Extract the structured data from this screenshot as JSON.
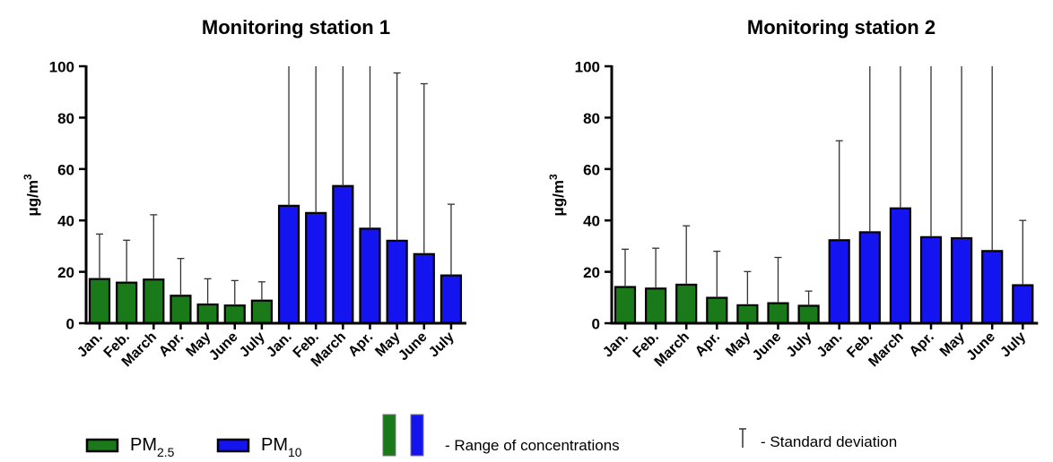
{
  "colors": {
    "pm25": "#1a7a1a",
    "pm10": "#1414f0",
    "axis": "#000000",
    "errorbar": "#333333"
  },
  "chart_data": [
    {
      "type": "bar",
      "title": "Monitoring station 1",
      "ylabel_base": "μg/m",
      "ylabel_sup": "3",
      "ylim": [
        0,
        100
      ],
      "yticks": [
        "0",
        "20",
        "40",
        "60",
        "80",
        "100"
      ],
      "grid": false,
      "categories": [
        "Jan.",
        "Feb.",
        "March",
        "Apr.",
        "May",
        "June",
        "July",
        "Jan.",
        "Feb.",
        "March",
        "Apr.",
        "May",
        "June",
        "July"
      ],
      "series": [
        {
          "name": "PM2.5",
          "values": [
            17.2,
            15.8,
            17.0,
            10.7,
            7.3,
            6.9,
            8.8,
            null,
            null,
            null,
            null,
            null,
            null,
            null
          ],
          "sd_upper": [
            34.7,
            32.3,
            42.2,
            25.2,
            17.3,
            16.6,
            16.1,
            null,
            null,
            null,
            null,
            null,
            null,
            null
          ]
        },
        {
          "name": "PM10",
          "values": [
            null,
            null,
            null,
            null,
            null,
            null,
            null,
            45.7,
            42.9,
            53.4,
            36.8,
            32.1,
            26.9,
            18.6
          ],
          "sd_upper": [
            null,
            null,
            null,
            null,
            null,
            null,
            null,
            100,
            100,
            100,
            100,
            97.4,
            93.2,
            46.3
          ]
        }
      ]
    },
    {
      "type": "bar",
      "title": "Monitoring station 2",
      "ylabel_base": "μg/m",
      "ylabel_sup": "3",
      "ylim": [
        0,
        100
      ],
      "yticks": [
        "0",
        "20",
        "40",
        "60",
        "80",
        "100"
      ],
      "grid": false,
      "categories": [
        "Jan.",
        "Feb.",
        "March",
        "Apr.",
        "May",
        "June",
        "July",
        "Jan.",
        "Feb.",
        "March",
        "Apr.",
        "May",
        "June",
        "July"
      ],
      "series": [
        {
          "name": "PM2.5",
          "values": [
            14.1,
            13.5,
            15.0,
            9.9,
            7.0,
            7.8,
            6.8,
            null,
            null,
            null,
            null,
            null,
            null,
            null
          ],
          "sd_upper": [
            28.8,
            29.2,
            37.9,
            28.0,
            20.1,
            25.6,
            12.5,
            null,
            null,
            null,
            null,
            null,
            null,
            null
          ]
        },
        {
          "name": "PM10",
          "values": [
            null,
            null,
            null,
            null,
            null,
            null,
            null,
            32.3,
            35.4,
            44.7,
            33.5,
            33.1,
            28.1,
            14.8
          ],
          "sd_upper": [
            null,
            null,
            null,
            null,
            null,
            null,
            null,
            71.0,
            100,
            100,
            100,
            100,
            100,
            40.0
          ]
        }
      ]
    }
  ],
  "legend": {
    "pm25_base": "PM",
    "pm25_sub": "2.5",
    "pm10_base": "PM",
    "pm10_sub": "10",
    "range_text": "- Range of concentrations",
    "sd_text": "- Standard deviation"
  }
}
